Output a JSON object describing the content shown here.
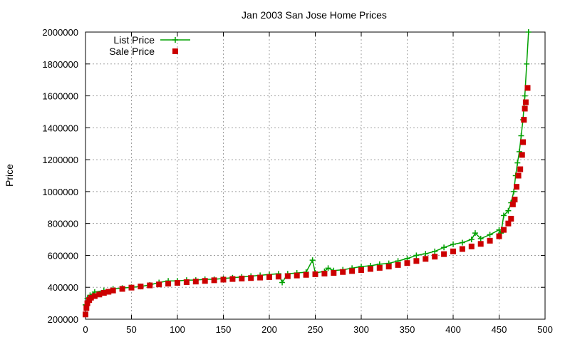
{
  "chart_data": {
    "type": "scatter",
    "title": "Jan 2003 San Jose Home Prices",
    "xlabel": "",
    "ylabel": "Price",
    "xlim": [
      0,
      500
    ],
    "ylim": [
      200000,
      2000000
    ],
    "xticks": [
      0,
      50,
      100,
      150,
      200,
      250,
      300,
      350,
      400,
      450,
      500
    ],
    "yticks": [
      200000,
      400000,
      600000,
      800000,
      1000000,
      1200000,
      1400000,
      1600000,
      1800000,
      2000000
    ],
    "grid": true,
    "legend_position": "top-left",
    "series": [
      {
        "name": "List Price",
        "color": "#00a000",
        "marker": "plus",
        "line": true,
        "x": [
          0,
          2,
          5,
          10,
          20,
          30,
          40,
          50,
          60,
          70,
          80,
          90,
          100,
          110,
          120,
          130,
          140,
          150,
          160,
          170,
          180,
          190,
          200,
          210,
          214,
          220,
          230,
          240,
          247,
          250,
          260,
          264,
          270,
          280,
          290,
          300,
          310,
          320,
          330,
          340,
          350,
          360,
          370,
          380,
          390,
          400,
          410,
          420,
          424,
          430,
          440,
          450,
          452,
          455,
          460,
          463,
          466,
          468,
          470,
          472,
          474,
          476,
          478,
          480,
          482
        ],
        "values": [
          290000,
          330000,
          350000,
          370000,
          380000,
          390000,
          395000,
          400000,
          405000,
          415000,
          430000,
          440000,
          440000,
          445000,
          445000,
          450000,
          450000,
          455000,
          460000,
          465000,
          470000,
          475000,
          480000,
          485000,
          430000,
          485000,
          490000,
          495000,
          570000,
          490000,
          500000,
          520000,
          505000,
          510000,
          520000,
          530000,
          535000,
          545000,
          550000,
          565000,
          580000,
          600000,
          610000,
          625000,
          650000,
          670000,
          680000,
          700000,
          740000,
          705000,
          730000,
          760000,
          740000,
          850000,
          880000,
          930000,
          1000000,
          1100000,
          1180000,
          1250000,
          1350000,
          1450000,
          1600000,
          1800000,
          2000000
        ]
      },
      {
        "name": "Sale Price",
        "color": "#cc0000",
        "marker": "square",
        "line": false,
        "x": [
          0,
          1,
          2,
          4,
          6,
          10,
          15,
          20,
          25,
          30,
          40,
          50,
          60,
          70,
          80,
          90,
          100,
          110,
          120,
          130,
          140,
          150,
          160,
          170,
          180,
          190,
          200,
          210,
          220,
          230,
          240,
          250,
          260,
          270,
          280,
          290,
          300,
          310,
          320,
          330,
          340,
          350,
          360,
          370,
          380,
          390,
          400,
          410,
          420,
          430,
          440,
          450,
          455,
          460,
          463,
          465,
          467,
          469,
          471,
          473,
          475,
          476,
          477,
          478,
          479,
          481
        ],
        "values": [
          230000,
          270000,
          300000,
          320000,
          335000,
          345000,
          355000,
          365000,
          372000,
          380000,
          390000,
          398000,
          405000,
          412000,
          418000,
          423000,
          428000,
          432000,
          436000,
          440000,
          444000,
          448000,
          452000,
          455000,
          458000,
          461000,
          464000,
          467000,
          470000,
          474000,
          478000,
          482000,
          486000,
          490000,
          496000,
          502000,
          508000,
          515000,
          522000,
          530000,
          540000,
          552000,
          565000,
          578000,
          592000,
          608000,
          625000,
          640000,
          656000,
          672000,
          692000,
          720000,
          760000,
          800000,
          830000,
          920000,
          950000,
          1030000,
          1100000,
          1140000,
          1230000,
          1310000,
          1450000,
          1520000,
          1560000,
          1650000
        ]
      }
    ]
  }
}
